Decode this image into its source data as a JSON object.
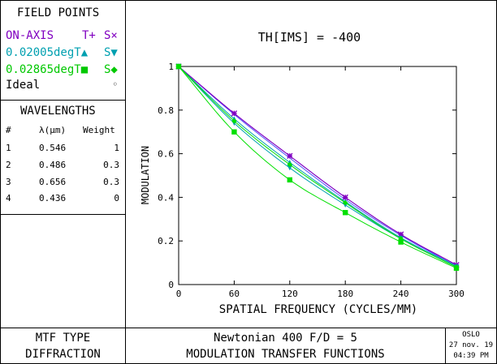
{
  "field_points": {
    "heading": "FIELD POINTS",
    "rows": [
      {
        "label": "ON-AXIS",
        "t": "T+",
        "s": "S×",
        "color": "#8000c0"
      },
      {
        "label": "0.02005degT▲",
        "t": "",
        "s": "S▼",
        "color": "#00a0b0"
      },
      {
        "label": "0.02865degT■",
        "t": "",
        "s": "S◆",
        "color": "#00e000"
      }
    ],
    "ideal_label": "Ideal",
    "ideal_marker": "◦"
  },
  "wavelengths": {
    "heading": "WAVELENGTHS",
    "col_index": "#",
    "col_lambda": "λ(μm)",
    "col_weight": "Weight",
    "rows": [
      {
        "idx": "1",
        "lambda": "0.546",
        "weight": "1"
      },
      {
        "idx": "2",
        "lambda": "0.486",
        "weight": "0.3"
      },
      {
        "idx": "3",
        "lambda": "0.656",
        "weight": "0.3"
      },
      {
        "idx": "4",
        "lambda": "0.436",
        "weight": "0"
      }
    ]
  },
  "footer": {
    "mtf_type_label": "MTF TYPE",
    "mtf_type_value": "DIFFRACTION",
    "title_line1": "Newtonian 400 F/D = 5",
    "title_line2": "MODULATION TRANSFER FUNCTIONS",
    "program": "OSLO",
    "date": "27 nov. 19",
    "time": "04:39 PM"
  },
  "chart_data": {
    "type": "line",
    "title": "TH[IMS] = -400",
    "xlabel": "SPATIAL FREQUENCY (CYCLES/MM)",
    "ylabel": "MODULATION",
    "xlim": [
      0,
      300
    ],
    "ylim": [
      0,
      1
    ],
    "x_ticks": [
      0,
      60,
      120,
      180,
      240,
      300
    ],
    "y_ticks": [
      0,
      0.2,
      0.4,
      0.6,
      0.8,
      1
    ],
    "y_tick_labels": [
      "0",
      "0.2",
      "0.4",
      "0.6",
      "0.8",
      "1"
    ],
    "x": [
      0,
      60,
      120,
      180,
      240,
      300
    ],
    "series": [
      {
        "name": "Ideal",
        "color": "#5050ff",
        "marker": "none",
        "values": [
          1.0,
          0.78,
          0.58,
          0.39,
          0.225,
          0.085
        ]
      },
      {
        "name": "ON-AXIS T",
        "color": "#8000c0",
        "marker": "plus",
        "values": [
          1.0,
          0.785,
          0.59,
          0.4,
          0.23,
          0.09
        ]
      },
      {
        "name": "ON-AXIS S",
        "color": "#8000c0",
        "marker": "x",
        "values": [
          1.0,
          0.785,
          0.59,
          0.4,
          0.23,
          0.09
        ]
      },
      {
        "name": "0.02005deg T",
        "color": "#00a0b0",
        "marker": "triangle-up",
        "values": [
          1.0,
          0.76,
          0.56,
          0.38,
          0.215,
          0.085
        ]
      },
      {
        "name": "0.02005deg S",
        "color": "#00a0b0",
        "marker": "triangle-down",
        "values": [
          1.0,
          0.74,
          0.535,
          0.365,
          0.21,
          0.08
        ]
      },
      {
        "name": "0.02865deg T",
        "color": "#00e000",
        "marker": "square",
        "values": [
          1.0,
          0.7,
          0.48,
          0.33,
          0.195,
          0.075
        ]
      },
      {
        "name": "0.02865deg S",
        "color": "#00e000",
        "marker": "diamond",
        "values": [
          1.0,
          0.75,
          0.55,
          0.375,
          0.21,
          0.08
        ]
      }
    ]
  }
}
